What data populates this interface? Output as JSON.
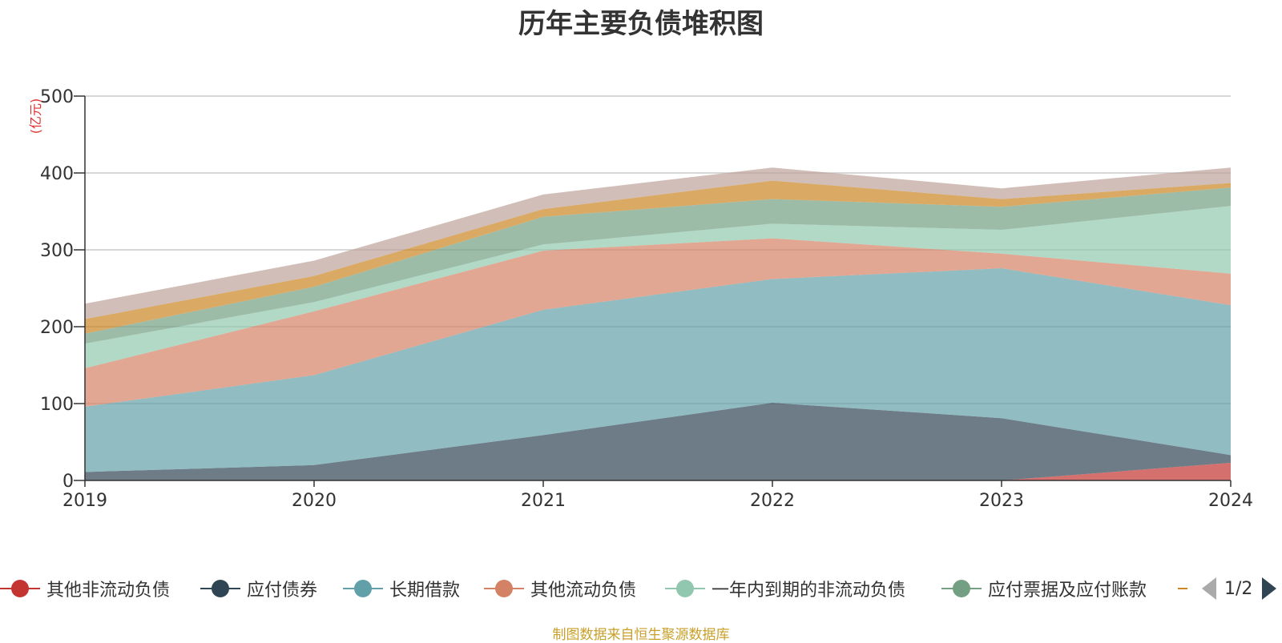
{
  "chart_data": {
    "type": "area",
    "stacked": true,
    "title": "历年主要负债堆积图",
    "unit_label": "(亿元)",
    "x": [
      "2019",
      "2020",
      "2021",
      "2022",
      "2023",
      "2024"
    ],
    "ylim": [
      0,
      500
    ],
    "yticks": [
      "0",
      "100",
      "200",
      "300",
      "400",
      "500"
    ],
    "grid": true,
    "legend_position": "bottom",
    "series": [
      {
        "name": "其他非流动负债",
        "color": "#c23531",
        "values": [
          0,
          0,
          0,
          0,
          0,
          23
        ]
      },
      {
        "name": "应付债券",
        "color": "#2f4554",
        "values": [
          11,
          20,
          59,
          101,
          81,
          10
        ]
      },
      {
        "name": "长期借款",
        "color": "#61a0a8",
        "values": [
          85,
          117,
          163,
          161,
          195,
          195
        ]
      },
      {
        "name": "其他流动负债",
        "color": "#d48265",
        "values": [
          50,
          83,
          77,
          53,
          19,
          41
        ]
      },
      {
        "name": "一年内到期的非流动负债",
        "color": "#91c7ae",
        "values": [
          32,
          12,
          8,
          19,
          31,
          88
        ]
      },
      {
        "name": "应付票据及应付账款",
        "color": "#749f83",
        "values": [
          13,
          20,
          36,
          32,
          30,
          24
        ]
      },
      {
        "name": "",
        "color": "#ca8622",
        "values": [
          19,
          14,
          10,
          24,
          10,
          6
        ]
      },
      {
        "name": "",
        "color": "#bda29a",
        "values": [
          20,
          20,
          19,
          17,
          14,
          20
        ]
      }
    ]
  },
  "legend": {
    "visible_items": [
      {
        "label": "其他非流动负债",
        "color": "#c23531"
      },
      {
        "label": "应付债券",
        "color": "#2f4554"
      },
      {
        "label": "长期借款",
        "color": "#61a0a8"
      },
      {
        "label": "其他流动负债",
        "color": "#d48265"
      },
      {
        "label": "一年内到期的非流动负债",
        "color": "#91c7ae"
      },
      {
        "label": "应付票据及应付账款",
        "color": "#749f83"
      }
    ],
    "partial_item_color": "#ca8622",
    "pager_text": "1/2"
  },
  "source_note": "制图数据来自恒生聚源数据库"
}
